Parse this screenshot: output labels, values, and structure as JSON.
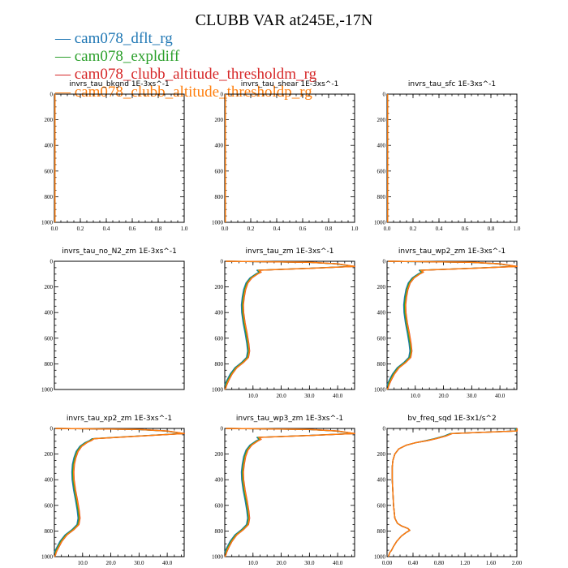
{
  "title": "CLUBB VAR at245E,-17N",
  "legend": [
    {
      "label": "cam078_dflt_rg",
      "color": "#1f77b4"
    },
    {
      "label": "cam078_expldiff",
      "color": "#2ca02c"
    },
    {
      "label": "cam078_clubb_altitude_thresholdm_rg",
      "color": "#d62728"
    },
    {
      "label": "cam078_clubb_altitude_thresholdp_rg",
      "color": "#ff7f0e"
    }
  ],
  "chart_data": [
    {
      "type": "line",
      "title": "invrs_tau_bkgnd   1E-3xs^-1",
      "xticks": [
        "0.0",
        "0.2",
        "0.4",
        "0.6",
        "0.8",
        "1.0"
      ],
      "xlim": [
        0,
        1
      ],
      "yticks": [
        "0",
        "200",
        "400",
        "600",
        "800",
        "1000"
      ],
      "ylim": [
        1000,
        0
      ],
      "profile": "flat0",
      "series": []
    },
    {
      "type": "line",
      "title": "invrs_tau_shear   1E-3xs^-1",
      "xticks": [
        "0.0",
        "0.2",
        "0.4",
        "0.6",
        "0.8",
        "1.0"
      ],
      "xlim": [
        0,
        1
      ],
      "yticks": [
        "0",
        "200",
        "400",
        "600",
        "800",
        "1000"
      ],
      "ylim": [
        1000,
        0
      ],
      "profile": "flat0",
      "series": []
    },
    {
      "type": "line",
      "title": "invrs_tau_sfc   1E-3xs^-1",
      "xticks": [
        "0.0",
        "0.2",
        "0.4",
        "0.6",
        "0.8",
        "1.0"
      ],
      "xlim": [
        0,
        1
      ],
      "yticks": [
        "0",
        "200",
        "400",
        "600",
        "800",
        "1000"
      ],
      "ylim": [
        1000,
        0
      ],
      "profile": "flat0",
      "series": []
    },
    {
      "type": "line",
      "title": "invrs_tau_no_N2_zm   1E-3xs^-1",
      "xticks": [],
      "xlim": [
        0,
        1
      ],
      "yticks": [
        "0",
        "200",
        "400",
        "600",
        "800",
        "1000"
      ],
      "ylim": [
        1000,
        0
      ],
      "profile": "empty",
      "series": []
    },
    {
      "type": "line",
      "title": "invrs_tau_zm   1E-3xs^-1",
      "xticks": [
        "10.0",
        "20.0",
        "30.0",
        "40.0"
      ],
      "xtick_values": [
        10,
        20,
        30,
        40
      ],
      "xlim": [
        0,
        46
      ],
      "yticks": [
        "0",
        "200",
        "400",
        "600",
        "800",
        "1000"
      ],
      "ylim": [
        1000,
        0
      ],
      "series": [
        {
          "y": [
            0,
            3,
            8,
            20,
            40,
            55,
            70,
            85,
            100,
            130,
            170,
            220,
            280,
            340,
            400,
            480,
            560,
            640,
            700,
            750,
            790,
            830,
            880,
            930,
            960,
            985,
            995,
            1000
          ],
          "x": [
            0.4,
            12,
            30,
            40,
            46,
            30,
            12,
            12.8,
            11.5,
            9.5,
            8.1,
            7.3,
            6.8,
            6.5,
            6.6,
            7.1,
            7.8,
            8.4,
            8.7,
            8.3,
            6.5,
            4.2,
            2.5,
            1.3,
            0.7,
            0.4,
            0.2,
            0.1
          ]
        }
      ]
    },
    {
      "type": "line",
      "title": "invrs_tau_wp2_zm   1E-3xs^-1",
      "xticks": [
        "10.0",
        "20.0",
        "30.0",
        "40.0"
      ],
      "xtick_values": [
        10,
        20,
        30,
        40
      ],
      "xlim": [
        0,
        46
      ],
      "yticks": [
        "0",
        "200",
        "400",
        "600",
        "800",
        "1000"
      ],
      "ylim": [
        1000,
        0
      ],
      "series": [
        {
          "y": [
            0,
            3,
            8,
            20,
            40,
            55,
            70,
            85,
            100,
            130,
            170,
            220,
            280,
            340,
            400,
            480,
            560,
            640,
            700,
            750,
            790,
            830,
            880,
            930,
            960,
            985,
            995,
            1000
          ],
          "x": [
            0.4,
            12,
            30,
            40,
            46,
            30,
            12,
            12.8,
            11.5,
            9.5,
            8.1,
            7.3,
            6.8,
            6.5,
            6.6,
            7.1,
            7.8,
            8.4,
            8.7,
            8.3,
            6.5,
            4.2,
            2.5,
            1.3,
            0.7,
            0.4,
            0.2,
            0.1
          ]
        }
      ]
    },
    {
      "type": "line",
      "title": "invrs_tau_xp2_zm   1E-3xs^-1",
      "xticks": [
        "10.0",
        "20.0",
        "30.0",
        "40.0"
      ],
      "xtick_values": [
        10,
        20,
        30,
        40
      ],
      "xlim": [
        0,
        46
      ],
      "yticks": [
        "0",
        "200",
        "400",
        "600",
        "800",
        "1000"
      ],
      "ylim": [
        1000,
        0
      ],
      "series": [
        {
          "y": [
            0,
            3,
            8,
            20,
            40,
            60,
            80,
            95,
            110,
            140,
            180,
            230,
            280,
            340,
            400,
            480,
            560,
            640,
            700,
            750,
            790,
            830,
            880,
            930,
            960,
            985,
            995,
            1000
          ],
          "x": [
            0.4,
            12,
            30,
            40,
            46,
            30,
            14,
            13,
            11.5,
            9.6,
            8.3,
            7.5,
            7.0,
            6.8,
            6.9,
            7.4,
            8.1,
            8.7,
            9.0,
            8.6,
            6.8,
            4.4,
            2.6,
            1.4,
            0.7,
            0.4,
            0.2,
            0.1
          ]
        }
      ]
    },
    {
      "type": "line",
      "title": "invrs_tau_wp3_zm   1E-3xs^-1",
      "xticks": [
        "10.0",
        "20.0",
        "30.0",
        "40.0"
      ],
      "xtick_values": [
        10,
        20,
        30,
        40
      ],
      "xlim": [
        0,
        46
      ],
      "yticks": [
        "0",
        "200",
        "400",
        "600",
        "800",
        "1000"
      ],
      "ylim": [
        1000,
        0
      ],
      "series": [
        {
          "y": [
            0,
            3,
            8,
            20,
            40,
            55,
            70,
            85,
            100,
            130,
            170,
            220,
            280,
            340,
            400,
            480,
            560,
            640,
            700,
            750,
            790,
            830,
            880,
            930,
            960,
            985,
            995,
            1000
          ],
          "x": [
            0.4,
            12,
            30,
            40,
            46,
            30,
            12,
            12.8,
            11.5,
            9.5,
            8.1,
            7.3,
            6.8,
            6.5,
            6.6,
            7.1,
            7.8,
            8.4,
            8.7,
            8.3,
            6.5,
            4.2,
            2.5,
            1.3,
            0.7,
            0.4,
            0.2,
            0.1
          ]
        }
      ]
    },
    {
      "type": "line",
      "title": "bv_freq_sqd   1E-3x1/s^2",
      "xticks": [
        "0.00",
        "0.40",
        "0.80",
        "1.20",
        "1.60",
        "2.00"
      ],
      "xtick_values": [
        0,
        0.4,
        0.8,
        1.2,
        1.6,
        2.0
      ],
      "xlim": [
        0,
        2.0
      ],
      "yticks": [
        "0",
        "200",
        "400",
        "600",
        "800",
        "1000"
      ],
      "ylim": [
        1000,
        0
      ],
      "series": [
        {
          "y": [
            0,
            20,
            40,
            60,
            80,
            95,
            110,
            130,
            160,
            200,
            250,
            300,
            400,
            500,
            600,
            700,
            740,
            760,
            780,
            795,
            810,
            840,
            880,
            920,
            950,
            970,
            1000
          ],
          "x": [
            2.0,
            2.0,
            1.0,
            0.9,
            0.75,
            0.62,
            0.45,
            0.3,
            0.18,
            0.12,
            0.09,
            0.08,
            0.08,
            0.09,
            0.1,
            0.12,
            0.16,
            0.22,
            0.32,
            0.35,
            0.3,
            0.22,
            0.15,
            0.1,
            0.07,
            0.04,
            0.02
          ]
        }
      ]
    }
  ]
}
